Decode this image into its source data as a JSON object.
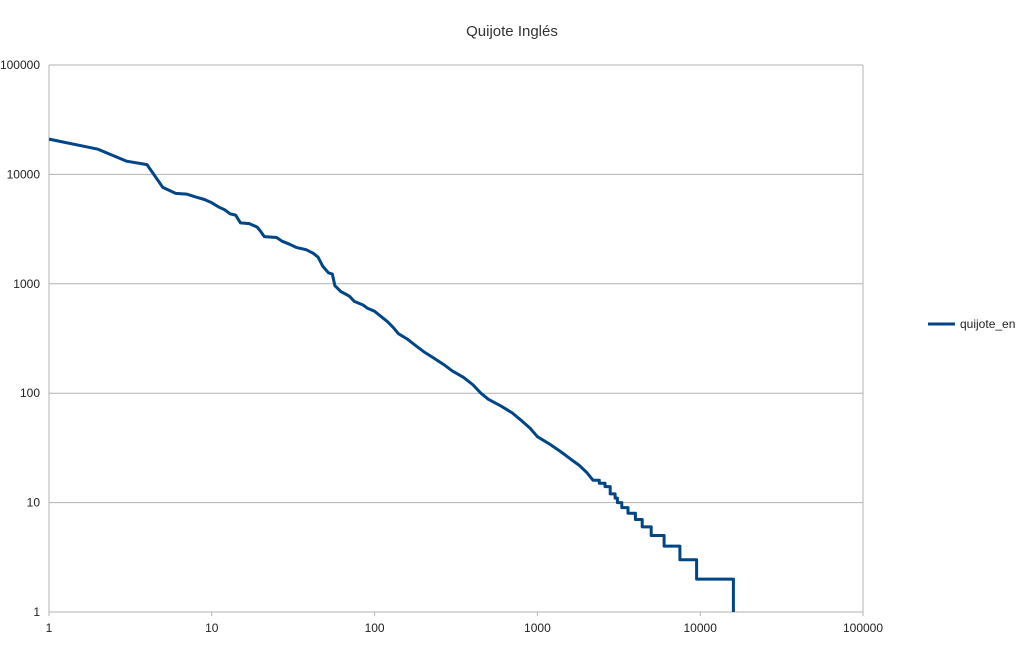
{
  "chart_data": {
    "type": "line",
    "title": "Quijote Inglés",
    "xlabel": "",
    "ylabel": "",
    "x_scale": "log",
    "y_scale": "log",
    "xlim": [
      1,
      100000
    ],
    "ylim": [
      1,
      100000
    ],
    "x_ticks": [
      "1",
      "10",
      "100",
      "1000",
      "10000",
      "100000"
    ],
    "y_ticks": [
      "1",
      "10",
      "100",
      "1000",
      "10000",
      "100000"
    ],
    "grid": "horizontal",
    "legend_position": "right",
    "series": [
      {
        "name": "quijote_en",
        "color": "#004586",
        "points": [
          [
            1,
            21000
          ],
          [
            2,
            17000
          ],
          [
            3,
            13200
          ],
          [
            4,
            12300
          ],
          [
            5,
            7600
          ],
          [
            6,
            6700
          ],
          [
            7,
            6600
          ],
          [
            8,
            6200
          ],
          [
            9,
            5900
          ],
          [
            10,
            5500
          ],
          [
            11,
            5050
          ],
          [
            12,
            4750
          ],
          [
            13,
            4350
          ],
          [
            14,
            4250
          ],
          [
            15,
            3600
          ],
          [
            17,
            3550
          ],
          [
            19,
            3300
          ],
          [
            20,
            3000
          ],
          [
            21,
            2700
          ],
          [
            25,
            2650
          ],
          [
            27,
            2450
          ],
          [
            30,
            2300
          ],
          [
            33,
            2150
          ],
          [
            38,
            2050
          ],
          [
            42,
            1900
          ],
          [
            45,
            1750
          ],
          [
            48,
            1450
          ],
          [
            52,
            1260
          ],
          [
            55,
            1230
          ],
          [
            57,
            960
          ],
          [
            62,
            850
          ],
          [
            70,
            770
          ],
          [
            75,
            690
          ],
          [
            85,
            640
          ],
          [
            90,
            600
          ],
          [
            100,
            560
          ],
          [
            110,
            500
          ],
          [
            120,
            450
          ],
          [
            130,
            400
          ],
          [
            140,
            350
          ],
          [
            160,
            310
          ],
          [
            180,
            270
          ],
          [
            200,
            240
          ],
          [
            230,
            210
          ],
          [
            270,
            180
          ],
          [
            300,
            160
          ],
          [
            350,
            140
          ],
          [
            400,
            120
          ],
          [
            450,
            100
          ],
          [
            500,
            88
          ],
          [
            600,
            76
          ],
          [
            700,
            66
          ],
          [
            800,
            56
          ],
          [
            900,
            48
          ],
          [
            1000,
            40
          ],
          [
            1200,
            34
          ],
          [
            1400,
            29
          ],
          [
            1600,
            25
          ],
          [
            1800,
            22
          ],
          [
            2000,
            19
          ],
          [
            2200,
            16
          ]
        ],
        "steps": [
          [
            2400,
            15
          ],
          [
            2600,
            14
          ],
          [
            2800,
            12
          ],
          [
            3000,
            11
          ],
          [
            3100,
            10
          ],
          [
            3300,
            9
          ],
          [
            3600,
            8
          ],
          [
            4000,
            7
          ],
          [
            4400,
            6
          ],
          [
            5000,
            5
          ],
          [
            6000,
            4
          ],
          [
            7500,
            3
          ],
          [
            9500,
            2
          ],
          [
            16000,
            1
          ]
        ]
      }
    ]
  }
}
